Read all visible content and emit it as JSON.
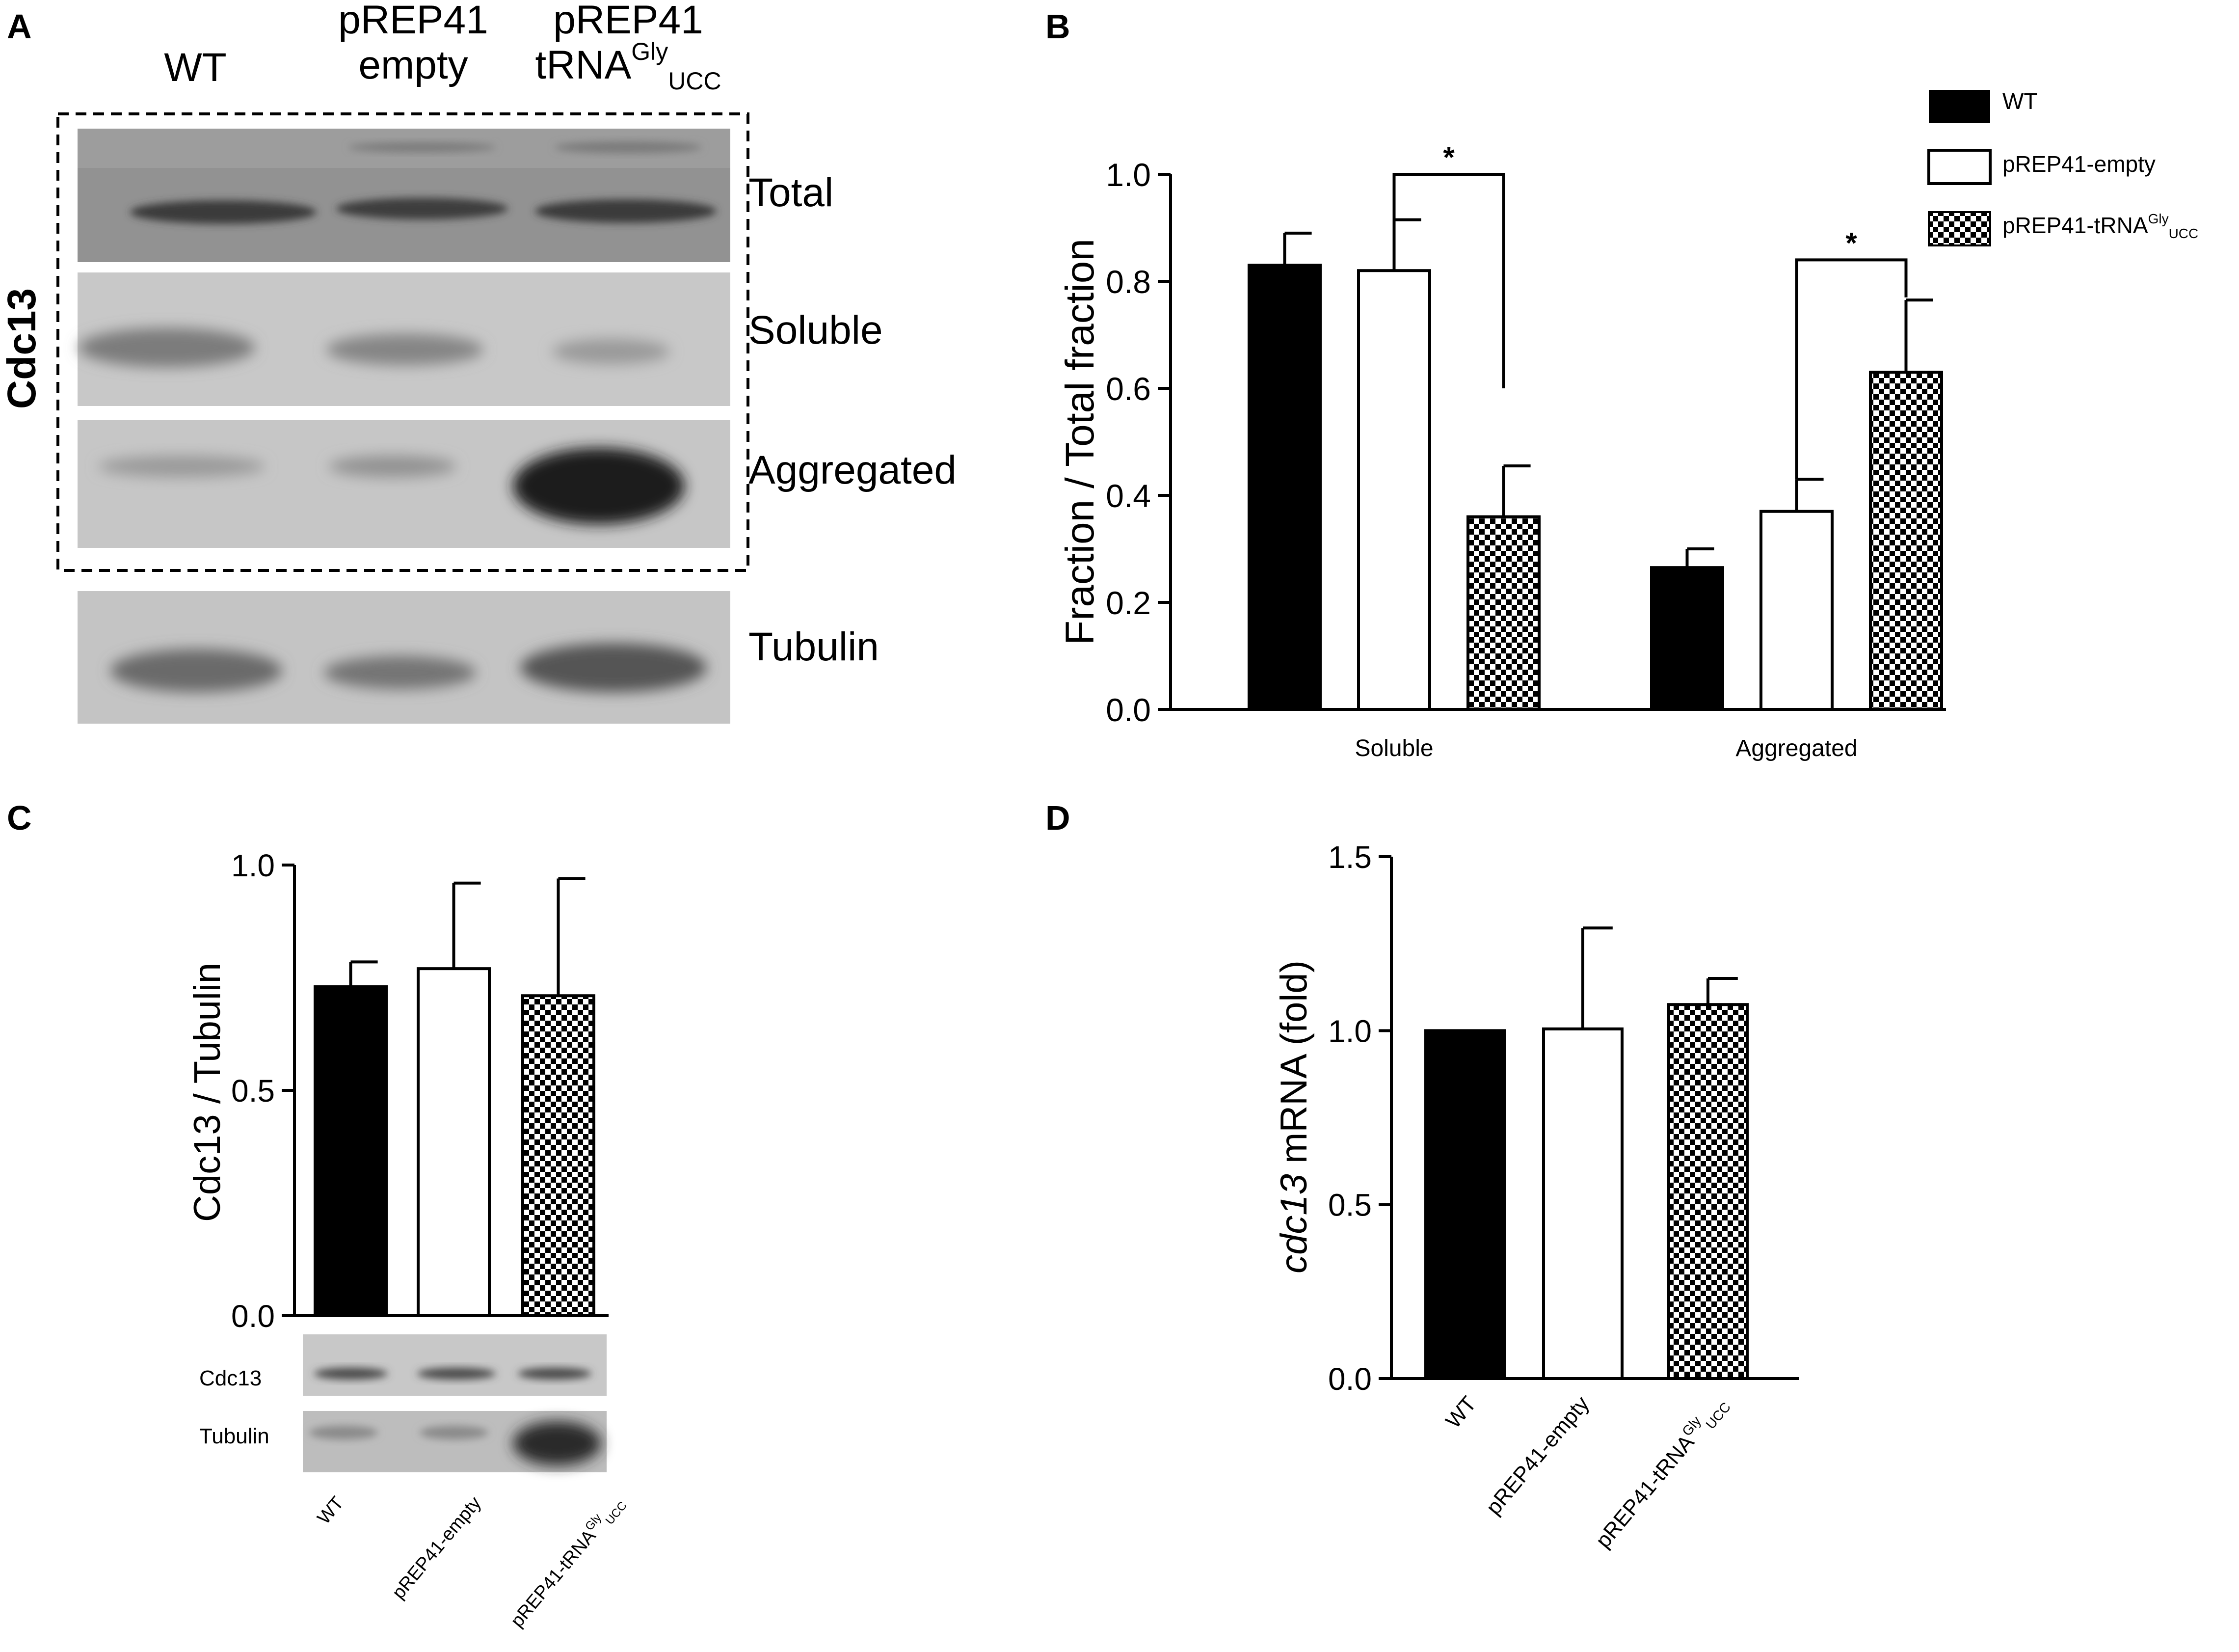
{
  "panels": {
    "A": "A",
    "B": "B",
    "C": "C",
    "D": "D"
  },
  "blot_A": {
    "lanes": [
      {
        "line1": "WT",
        "line2": ""
      },
      {
        "line1": "pREP41",
        "line2": "empty"
      },
      {
        "line1": "pREP41",
        "line2": "tRNA",
        "sup": "Gly",
        "sub": "UCC"
      }
    ],
    "side_label": "Cdc13",
    "rows": [
      "Total",
      "Soluble",
      "Aggregated"
    ],
    "loading_label": "Tubulin"
  },
  "blot_C": {
    "rows": [
      "Cdc13",
      "Tubulin"
    ]
  },
  "legend": [
    {
      "label": "WT",
      "style": "solid"
    },
    {
      "label": "pREP41-empty",
      "style": "open"
    },
    {
      "label": "pREP41-tRNA",
      "sup": "Gly",
      "sub": "UCC",
      "style": "checkered"
    }
  ],
  "colors": {
    "solid": "#000000",
    "open": "#ffffff",
    "checker": "#000000",
    "axis": "#000000"
  },
  "chart_data": [
    {
      "panel": "B",
      "type": "bar",
      "categories": [
        "Soluble",
        "Aggregated"
      ],
      "series": [
        {
          "name": "WT",
          "values": [
            0.83,
            0.265
          ],
          "errors": [
            0.06,
            0.035
          ]
        },
        {
          "name": "pREP41-empty",
          "values": [
            0.82,
            0.37
          ],
          "errors": [
            0.095,
            0.06
          ]
        },
        {
          "name": "pREP41-tRNAGlyUCC",
          "values": [
            0.36,
            0.63
          ],
          "errors": [
            0.095,
            0.135
          ]
        }
      ],
      "ylabel": "Fraction  /  Total fraction",
      "ylim": [
        0,
        1.0
      ],
      "yticks": [
        "0.0",
        "0.2",
        "0.4",
        "0.6",
        "0.8",
        "1.0"
      ],
      "significance": [
        "*",
        "*"
      ]
    },
    {
      "panel": "C",
      "type": "bar",
      "categories": [
        "WT",
        "pREP41-empty",
        "pREP41-tRNAGlyUCC"
      ],
      "values": [
        0.73,
        0.77,
        0.71
      ],
      "errors": [
        0.055,
        0.19,
        0.26
      ],
      "ylabel": "Cdc13  / Tubulin",
      "ylim": [
        0,
        1.0
      ],
      "yticks": [
        "0.0",
        "0.5",
        "1.0"
      ]
    },
    {
      "panel": "D",
      "type": "bar",
      "categories": [
        "WT",
        "pREP41-empty",
        "pREP41-tRNAGlyUCC"
      ],
      "values": [
        1.0,
        1.005,
        1.075
      ],
      "errors": [
        0.0,
        0.29,
        0.075
      ],
      "ylabel_italic": "cdc13",
      "ylabel_rest": " mRNA  (fold)",
      "ylim": [
        0,
        1.5
      ],
      "yticks": [
        "0.0",
        "0.5",
        "1.0",
        "1.5"
      ]
    }
  ],
  "x_labels_C": [
    {
      "text": "WT"
    },
    {
      "text": "pREP41-empty"
    },
    {
      "text": "pREP41-tRNA",
      "sup": "Gly",
      "sub": "UCC"
    }
  ],
  "x_labels_D": [
    {
      "text": "WT"
    },
    {
      "text": "pREP41-empty"
    },
    {
      "text": "pREP41-tRNA",
      "sup": "Gly",
      "sub": "UCC"
    }
  ]
}
